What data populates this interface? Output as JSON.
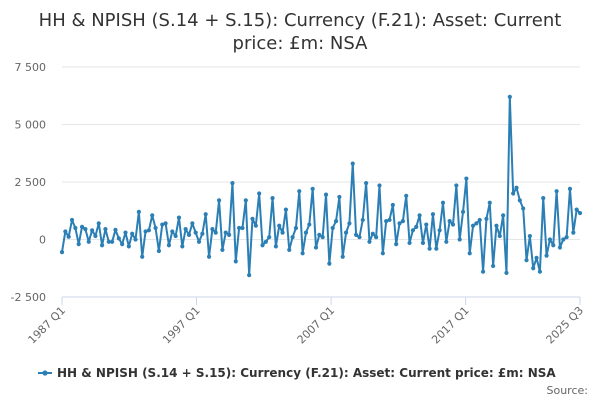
{
  "chart_data": {
    "type": "line",
    "title_lines": [
      "HH & NPISH (S.14 + S.15): Currency (F.21): Asset: Current",
      "price: £m: NSA"
    ],
    "x_ticks": [
      "1987 Q1",
      "1997 Q1",
      "2007 Q1",
      "2017 Q1",
      "2025 Q3"
    ],
    "y_ticks": [
      "-2 500",
      "0",
      "2 500",
      "5 000",
      "7 500"
    ],
    "ylim": [
      -2500,
      7500
    ],
    "x_range": [
      "1987 Q1",
      "2025 Q3"
    ],
    "grid": "horizontal",
    "legend_position": "bottom",
    "color": "#2b7fb5",
    "series": [
      {
        "name": "HH & NPISH (S.14 + S.15): Currency (F.21): Asset: Current price: £m: NSA",
        "values": [
          -550,
          350,
          120,
          850,
          500,
          -200,
          550,
          450,
          -100,
          400,
          150,
          700,
          -250,
          450,
          -100,
          -100,
          420,
          50,
          -200,
          300,
          -300,
          250,
          0,
          1200,
          -750,
          350,
          400,
          1050,
          500,
          -500,
          650,
          700,
          -250,
          350,
          150,
          950,
          -300,
          450,
          200,
          700,
          300,
          -100,
          250,
          1100,
          -750,
          450,
          300,
          1700,
          -450,
          300,
          200,
          2450,
          -950,
          500,
          500,
          1700,
          -1550,
          900,
          600,
          2000,
          -250,
          -100,
          100,
          1800,
          -300,
          600,
          300,
          1300,
          -450,
          100,
          500,
          2100,
          -600,
          300,
          650,
          2200,
          -350,
          200,
          100,
          1950,
          -1050,
          500,
          800,
          1850,
          -750,
          300,
          700,
          3300,
          200,
          100,
          850,
          2450,
          -100,
          250,
          100,
          2350,
          -600,
          800,
          850,
          1500,
          -200,
          700,
          800,
          1900,
          -150,
          400,
          550,
          1050,
          -150,
          650,
          -400,
          1100,
          -400,
          400,
          1600,
          -100,
          800,
          650,
          2350,
          0,
          1200,
          2650,
          -600,
          600,
          700,
          850,
          -1400,
          900,
          1600,
          -1150,
          600,
          150,
          1050,
          -1450,
          6200,
          2000,
          2250,
          1700,
          1350,
          -900,
          150,
          -1250,
          -800,
          -1400,
          1800,
          -700,
          0,
          -250,
          2100,
          -350,
          0,
          100,
          2200,
          300,
          1300,
          1150
        ]
      }
    ],
    "credit": "Source:"
  }
}
